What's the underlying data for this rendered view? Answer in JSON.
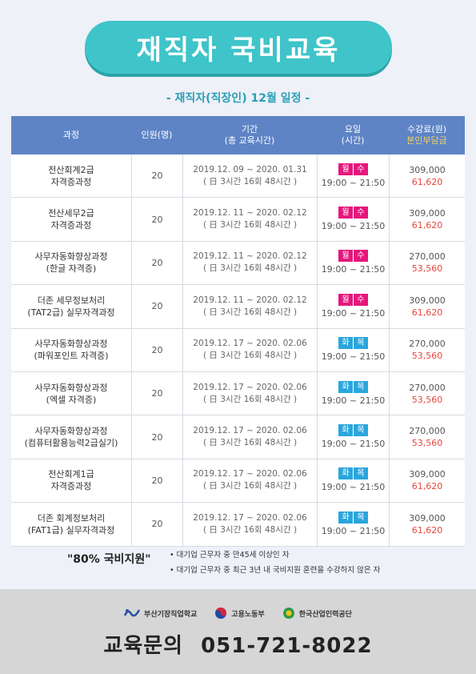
{
  "header": {
    "title": "재직자 국비교육",
    "subtitle": "- 재직자(직장인) 12월 일정 -"
  },
  "table": {
    "headers": {
      "course": "과정",
      "capacity": "인원(명)",
      "period_line1": "기간",
      "period_line2": "(총 교육시간)",
      "day_line1": "요일",
      "day_line2": "(시간)",
      "fee_line1": "수강료(원)",
      "fee_line2": "본인부담금"
    },
    "rows": [
      {
        "course1": "전산회계2급",
        "course2": "자격증과정",
        "capacity": "20",
        "period": "2019.12. 09 ~ 2020. 01.31",
        "hours": "( 日 3시간 16회 48시간 )",
        "day1": "월",
        "day2": "수",
        "time": "19:00 ~ 21:50",
        "fee": "309,000",
        "self": "61,620",
        "color": "#e5177d"
      },
      {
        "course1": "전산세무2급",
        "course2": "자격증과정",
        "capacity": "20",
        "period": "2019.12. 11 ~ 2020. 02.12",
        "hours": "( 日 3시간 16회 48시간 )",
        "day1": "월",
        "day2": "수",
        "time": "19:00 ~ 21:50",
        "fee": "309,000",
        "self": "61,620",
        "color": "#e5177d"
      },
      {
        "course1": "사무자동화향상과정",
        "course2": "(한글 자격증)",
        "capacity": "20",
        "period": "2019.12. 11 ~ 2020. 02.12",
        "hours": "( 日 3시간 16회 48시간 )",
        "day1": "월",
        "day2": "수",
        "time": "19:00 ~ 21:50",
        "fee": "270,000",
        "self": "53,560",
        "color": "#e5177d"
      },
      {
        "course1": "더존 세무정보처리",
        "course2": "(TAT2급) 실무자격과정",
        "capacity": "20",
        "period": "2019.12. 11 ~ 2020. 02.12",
        "hours": "( 日 3시간 16회 48시간 )",
        "day1": "월",
        "day2": "수",
        "time": "19:00 ~ 21:50",
        "fee": "309,000",
        "self": "61,620",
        "color": "#e5177d"
      },
      {
        "course1": "사무자동화향상과정",
        "course2": "(파워포인트 자격증)",
        "capacity": "20",
        "period": "2019.12. 17 ~ 2020. 02.06",
        "hours": "( 日 3시간 16회 48시간 )",
        "day1": "화",
        "day2": "목",
        "time": "19:00 ~ 21:50",
        "fee": "270,000",
        "self": "53,560",
        "color": "#2aa6dd"
      },
      {
        "course1": "사무자동화향상과정",
        "course2": "(엑셀 자격증)",
        "capacity": "20",
        "period": "2019.12. 17 ~ 2020. 02.06",
        "hours": "( 日 3시간 16회 48시간 )",
        "day1": "화",
        "day2": "목",
        "time": "19:00 ~ 21:50",
        "fee": "270,000",
        "self": "53,560",
        "color": "#2aa6dd"
      },
      {
        "course1": "사무자동화향상과정",
        "course2": "(컴퓨터활용능력2급실기)",
        "capacity": "20",
        "period": "2019.12. 17 ~ 2020. 02.06",
        "hours": "( 日 3시간 16회 48시간 )",
        "day1": "화",
        "day2": "목",
        "time": "19:00 ~ 21:50",
        "fee": "270,000",
        "self": "53,560",
        "color": "#2aa6dd"
      },
      {
        "course1": "전산회계1급",
        "course2": "자격증과정",
        "capacity": "20",
        "period": "2019.12. 17 ~ 2020. 02.06",
        "hours": "( 日 3시간 16회 48시간 )",
        "day1": "화",
        "day2": "목",
        "time": "19:00 ~ 21:50",
        "fee": "309,000",
        "self": "61,620",
        "color": "#2aa6dd"
      },
      {
        "course1": "더존 회계정보처리",
        "course2": "(FAT1급) 실무자격과정",
        "capacity": "20",
        "period": "2019.12. 17 ~ 2020. 02.06",
        "hours": "( 日 3시간 16회 48시간 )",
        "day1": "화",
        "day2": "목",
        "time": "19:00 ~ 21:50",
        "fee": "309,000",
        "self": "61,620",
        "color": "#2aa6dd"
      }
    ]
  },
  "support": {
    "label": "\"80% 국비지원\"",
    "note1": "• 대기업 근무자 중 만45세 이상인 자",
    "note2": "• 대기업 근무자 중 최근 3년 내 국비지원 훈련을 수강하지 않은 자"
  },
  "footer": {
    "logo1": "부산기장직업학교",
    "logo2": "고용노동부",
    "logo3": "한국산업인력공단",
    "contact_label": "교육문의",
    "contact_phone": "051-721-8022"
  }
}
